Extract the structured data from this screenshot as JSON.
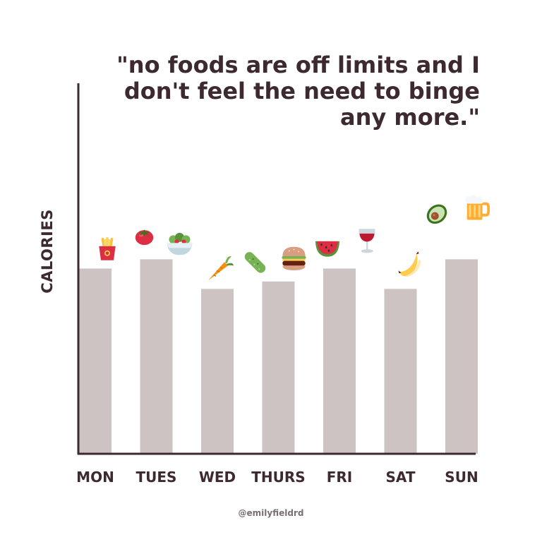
{
  "quote_lines": [
    "\"no foods are off limits and I",
    "don't feel the need to binge",
    "any more.\""
  ],
  "credit": "@emilyfieldrd",
  "colors": {
    "bar": "#cdc3c3",
    "axis": "#3d2a30",
    "text": "#3d2a30"
  },
  "chart_data": {
    "type": "bar",
    "ylabel": "CALORIES",
    "xlabel": "",
    "categories": [
      "MON",
      "TUES",
      "WED",
      "THURS",
      "FRI",
      "SAT",
      "SUN"
    ],
    "values": [
      100,
      105,
      89,
      93,
      100,
      89,
      105
    ],
    "ylim": [
      0,
      200
    ],
    "grid": false,
    "legend": "none",
    "food_icons": [
      [
        "fries-icon"
      ],
      [
        "tomato-icon",
        "salad-icon"
      ],
      [
        "carrot-icon"
      ],
      [
        "cucumber-icon",
        "burger-icon"
      ],
      [
        "watermelon-icon",
        "wine-glass-icon"
      ],
      [
        "banana-icon"
      ],
      [
        "avocado-icon",
        "beer-mug-icon"
      ]
    ]
  }
}
